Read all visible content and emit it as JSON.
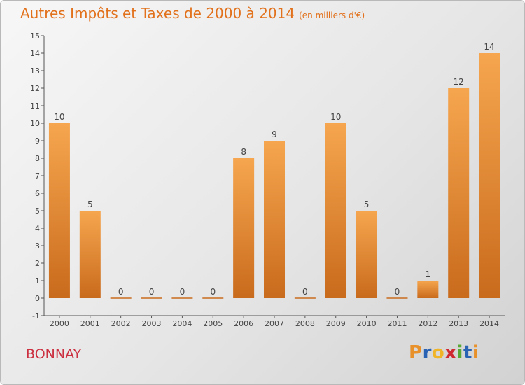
{
  "title": "Autres Impôts et Taxes de 2000 à 2014",
  "unit": "(en milliers d'€)",
  "city": "BONNAY",
  "logo": {
    "letters": [
      "P",
      "r",
      "o",
      "x",
      "i",
      "t",
      "i"
    ],
    "colors": [
      "#e8912a",
      "#2b63b4",
      "#f0b429",
      "#cf2a31",
      "#58a834",
      "#2b63b4",
      "#e8912a"
    ]
  },
  "colors": {
    "bar_light": "#f6a64f",
    "bar_dark": "#c96b1c",
    "title": "#e2711c",
    "city": "#cc2f3f"
  },
  "chart_data": {
    "type": "bar",
    "categories": [
      "2000",
      "2001",
      "2002",
      "2003",
      "2004",
      "2005",
      "2006",
      "2007",
      "2008",
      "2009",
      "2010",
      "2011",
      "2012",
      "2013",
      "2014"
    ],
    "values": [
      10,
      5,
      0,
      0,
      0,
      0,
      8,
      9,
      0,
      10,
      5,
      0,
      1,
      12,
      14
    ],
    "ylim": [
      -1,
      15
    ],
    "yticks": [
      "-1",
      "0",
      "1",
      "2",
      "3",
      "4",
      "5",
      "6",
      "7",
      "8",
      "9",
      "10",
      "11",
      "12",
      "13",
      "14",
      "15"
    ],
    "grid": false
  }
}
